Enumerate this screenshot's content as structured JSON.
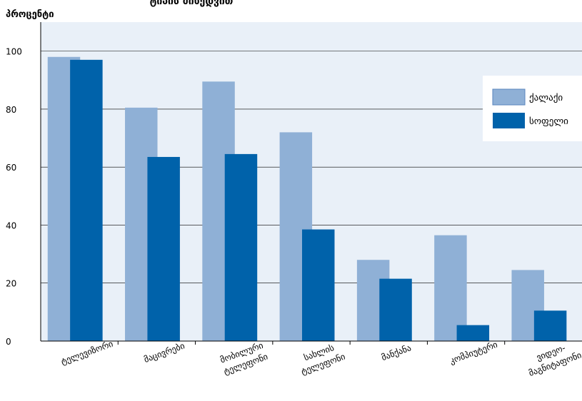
{
  "chart_data": {
    "type": "bar",
    "title": "ტიპის მიხედვით",
    "ylabel": "პროცენტი",
    "xlabel": "",
    "ylim": [
      0,
      110
    ],
    "yticks": [
      0,
      20,
      40,
      60,
      80,
      100
    ],
    "grid": true,
    "legend_position": "right",
    "categories": [
      [
        "ტელევიზორი"
      ],
      [
        "მაცივრები"
      ],
      [
        "მობილური",
        "ტელეფონი"
      ],
      [
        "სახლის",
        "ტელეფონი"
      ],
      [
        "მანქანა"
      ],
      [
        "კომპიუტერი"
      ],
      [
        "ვიდეო-",
        "მაგნიტაფონი"
      ]
    ],
    "series": [
      {
        "name": "ქალაქი",
        "color": "#8fb0d6",
        "values": [
          98,
          80.5,
          89.5,
          72,
          28,
          36.5,
          24.5
        ]
      },
      {
        "name": "სოფელი",
        "color": "#0062aa",
        "values": [
          97,
          63.5,
          64.5,
          38.5,
          21.5,
          5.5,
          10.5
        ]
      }
    ]
  },
  "colors": {
    "plot_background": "#e9f0f8",
    "axis": "#000000",
    "grid": "#000000"
  }
}
